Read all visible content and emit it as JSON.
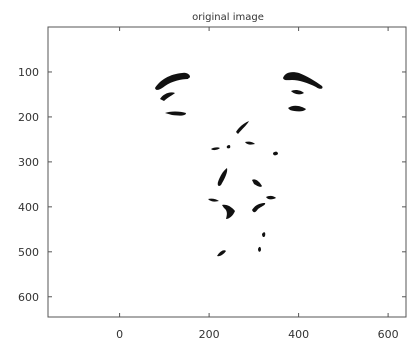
{
  "title": "original image",
  "axes": {
    "x_ticks": [
      "0",
      "200",
      "400",
      "600"
    ],
    "x_tick_values": [
      0,
      200,
      400,
      600
    ],
    "y_ticks": [
      "100",
      "200",
      "300",
      "400",
      "500",
      "600"
    ],
    "y_tick_values": [
      100,
      200,
      300,
      400,
      500,
      600
    ],
    "x_range": [
      -160,
      640
    ],
    "y_range": [
      0,
      645
    ]
  },
  "colors": {
    "background": "#ffffff",
    "axis": "#555555",
    "feature": "#111111",
    "text": "#333333"
  },
  "features": [
    {
      "name": "left-eyebrow",
      "x": 115,
      "y": 110
    },
    {
      "name": "left-eye-upper",
      "x": 100,
      "y": 160
    },
    {
      "name": "left-eye-lower",
      "x": 125,
      "y": 182
    },
    {
      "name": "right-eyebrow",
      "x": 395,
      "y": 110
    },
    {
      "name": "right-eye-upper",
      "x": 395,
      "y": 150
    },
    {
      "name": "right-eye-lower",
      "x": 390,
      "y": 175
    },
    {
      "name": "nose-bridge-upper",
      "x": 260,
      "y": 220
    },
    {
      "name": "nose-bridge-left",
      "x": 215,
      "y": 265
    },
    {
      "name": "nose-bridge-right",
      "x": 280,
      "y": 255
    },
    {
      "name": "nose-wing-left",
      "x": 225,
      "y": 330
    },
    {
      "name": "nose-wing-right",
      "x": 305,
      "y": 340
    },
    {
      "name": "nostril-left",
      "x": 220,
      "y": 380
    },
    {
      "name": "nostril-center-left",
      "x": 245,
      "y": 398
    },
    {
      "name": "nostril-center-right",
      "x": 285,
      "y": 398
    },
    {
      "name": "nostril-right",
      "x": 315,
      "y": 375
    },
    {
      "name": "cheek-mark-right",
      "x": 355,
      "y": 275
    },
    {
      "name": "mouth-mark-right",
      "x": 305,
      "y": 460
    },
    {
      "name": "chin-mark-left",
      "x": 225,
      "y": 495
    },
    {
      "name": "chin-mark-right",
      "x": 300,
      "y": 495
    }
  ]
}
